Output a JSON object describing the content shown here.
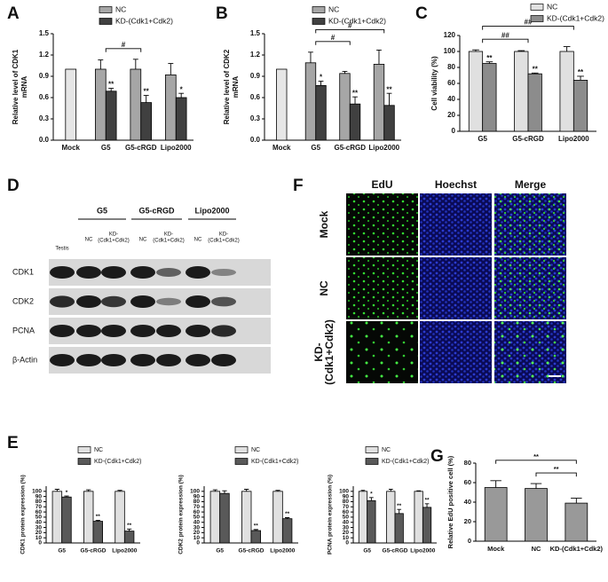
{
  "chart_data": [
    {
      "panel": "A",
      "type": "bar",
      "ylabel": [
        "Relative level of CDK1",
        "mRNA"
      ],
      "categories": [
        "Mock",
        "G5",
        "G5-cRGD",
        "Lipo2000"
      ],
      "series": [
        {
          "color": "#e6e6e6",
          "values": [
            1.0,
            null,
            null,
            null
          ]
        },
        {
          "name": "NC",
          "color": "#a6a6a6",
          "values": [
            null,
            1.0,
            1.0,
            0.92
          ],
          "errors": [
            null,
            0.13,
            0.14,
            0.16
          ]
        },
        {
          "name": "KD-(Cdk1+Cdk2)",
          "color": "#404040",
          "values": [
            null,
            0.69,
            0.53,
            0.6
          ],
          "errors": [
            null,
            0.04,
            0.1,
            0.06
          ],
          "labels": [
            null,
            "**",
            "**",
            "*"
          ]
        }
      ],
      "ylim": [
        0,
        1.5
      ],
      "yticks": [
        {
          "value": 0,
          "label": "0.0"
        },
        0.3,
        0.6,
        0.9,
        1.2,
        1.5
      ],
      "brackets": [
        {
          "between": [
            "G5",
            "G5-cRGD"
          ],
          "label": "#"
        }
      ]
    },
    {
      "panel": "B",
      "type": "bar",
      "ylabel": [
        "Relative level of CDK2",
        "mRNA"
      ],
      "categories": [
        "Mock",
        "G5",
        "G5-cRGD",
        "Lipo2000"
      ],
      "series": [
        {
          "color": "#e6e6e6",
          "values": [
            1.0,
            null,
            null,
            null
          ]
        },
        {
          "name": "NC",
          "color": "#a6a6a6",
          "values": [
            null,
            1.09,
            0.94,
            1.07
          ],
          "errors": [
            null,
            0.15,
            0.03,
            0.2
          ]
        },
        {
          "name": "KD-(Cdk1+Cdk2)",
          "color": "#404040",
          "values": [
            null,
            0.77,
            0.51,
            0.49
          ],
          "errors": [
            null,
            0.06,
            0.1,
            0.17
          ],
          "labels": [
            null,
            "*",
            "**",
            "**"
          ]
        }
      ],
      "ylim": [
        0,
        1.5
      ],
      "yticks": [
        {
          "value": 0,
          "label": "0.0"
        },
        0.3,
        0.6,
        0.9,
        1.2,
        1.5
      ],
      "brackets": [
        {
          "between": [
            "G5",
            "G5-cRGD"
          ],
          "label": "#"
        },
        {
          "between": [
            "G5",
            "Lipo2000"
          ],
          "label": "#"
        }
      ]
    },
    {
      "panel": "C",
      "type": "bar",
      "ylabel": [
        "Cell viability (%)"
      ],
      "categories": [
        "G5",
        "G5-cRGD",
        "Lipo2000"
      ],
      "series": [
        {
          "name": "NC",
          "color": "#e0e0e0",
          "values": [
            100,
            100,
            100
          ],
          "errors": [
            2,
            1,
            6
          ]
        },
        {
          "name": "KD-(Cdk1+Cdk2)",
          "color": "#8c8c8c",
          "values": [
            85,
            72,
            64
          ],
          "errors": [
            2,
            1,
            5
          ],
          "labels": [
            "**",
            "**",
            "**"
          ]
        }
      ],
      "ylim": [
        0,
        120
      ],
      "yticks": [
        0,
        20,
        40,
        60,
        80,
        100,
        120
      ],
      "brackets": [
        {
          "between": [
            "G5",
            "G5-cRGD"
          ],
          "label": "##"
        },
        {
          "between": [
            "G5",
            "Lipo2000"
          ],
          "label": "##"
        }
      ]
    },
    {
      "panel": "E",
      "type": "bar",
      "ylabel": [
        "CDK1 protein expression (%)"
      ],
      "categories": [
        "G5",
        "G5-cRGD",
        "Lipo2000"
      ],
      "series": [
        {
          "name": "NC",
          "color": "#e0e0e0",
          "values": [
            100,
            100,
            100
          ],
          "errors": [
            4,
            3,
            2
          ]
        },
        {
          "name": "KD-(Cdk1+Cdk2)",
          "color": "#595959",
          "values": [
            89,
            42,
            23
          ],
          "errors": [
            2,
            2,
            4
          ],
          "labels": [
            "*",
            "**",
            "**"
          ]
        }
      ],
      "ylim": [
        0,
        110
      ],
      "yticks": [
        0,
        10,
        20,
        30,
        40,
        50,
        60,
        70,
        80,
        90,
        100
      ]
    },
    {
      "type": "bar",
      "ylabel": [
        "CDK2 protein expression (%)"
      ],
      "categories": [
        "G5",
        "G5-cRGD",
        "Lipo2000"
      ],
      "series": [
        {
          "name": "NC",
          "color": "#e0e0e0",
          "values": [
            100,
            100,
            100
          ],
          "errors": [
            3,
            4,
            2
          ]
        },
        {
          "name": "KD-(Cdk1+Cdk2)",
          "color": "#595959",
          "values": [
            96,
            24,
            47
          ],
          "errors": [
            5,
            2,
            2
          ],
          "labels": [
            null,
            "**",
            "**"
          ]
        }
      ],
      "ylim": [
        0,
        110
      ],
      "yticks": [
        0,
        10,
        20,
        30,
        40,
        50,
        60,
        70,
        80,
        90,
        100
      ]
    },
    {
      "type": "bar",
      "ylabel": [
        "PCNA protein expression (%)"
      ],
      "categories": [
        "G5",
        "G5-cRGD",
        "Lipo2000"
      ],
      "series": [
        {
          "name": "NC",
          "color": "#e0e0e0",
          "values": [
            100,
            100,
            100
          ],
          "errors": [
            2,
            4,
            1
          ]
        },
        {
          "name": "KD-(Cdk1+Cdk2)",
          "color": "#595959",
          "values": [
            82,
            57,
            69
          ],
          "errors": [
            6,
            8,
            7
          ],
          "labels": [
            "*",
            "**",
            "**"
          ]
        }
      ],
      "ylim": [
        0,
        110
      ],
      "yticks": [
        0,
        10,
        20,
        30,
        40,
        50,
        60,
        70,
        80,
        90,
        100
      ]
    },
    {
      "panel": "G",
      "type": "bar",
      "ylabel": [
        "Relative EdU positive cell (%)"
      ],
      "categories": [
        "Mock",
        "NC",
        "KD-(Cdk1+Cdk2)"
      ],
      "series": [
        {
          "color": "#999999",
          "values": [
            55,
            54,
            39
          ],
          "errors": [
            7,
            5,
            5
          ]
        }
      ],
      "ylim": [
        0,
        80
      ],
      "yticks": [
        0,
        20,
        40,
        60,
        80
      ],
      "brackets": [
        {
          "between": [
            "NC",
            "KD-(Cdk1+Cdk2)"
          ],
          "label": "**"
        },
        {
          "between": [
            "Mock",
            "KD-(Cdk1+Cdk2)"
          ],
          "label": "**"
        }
      ]
    }
  ],
  "blot": {
    "panel": "D",
    "groups": [
      "G5",
      "G5-cRGD",
      "Lipo2000"
    ],
    "lanes": [
      [
        "Testis"
      ],
      [
        "NC"
      ],
      [
        "KD-",
        "(Cdk1+Cdk2)"
      ],
      [
        "NC"
      ],
      [
        "KD-",
        "(Cdk1+Cdk2)"
      ],
      [
        "NC"
      ],
      [
        "KD-",
        "(Cdk1+Cdk2)"
      ]
    ],
    "rows": [
      "CDK1",
      "CDK2",
      "PCNA",
      "β-Actin"
    ]
  },
  "images": {
    "panel": "F",
    "columns": [
      "EdU",
      "Hoechst",
      "Merge"
    ],
    "rows": [
      [
        "Mock"
      ],
      [
        "NC"
      ],
      [
        "KD-",
        "(Cdk1+Cdk2)"
      ]
    ]
  }
}
